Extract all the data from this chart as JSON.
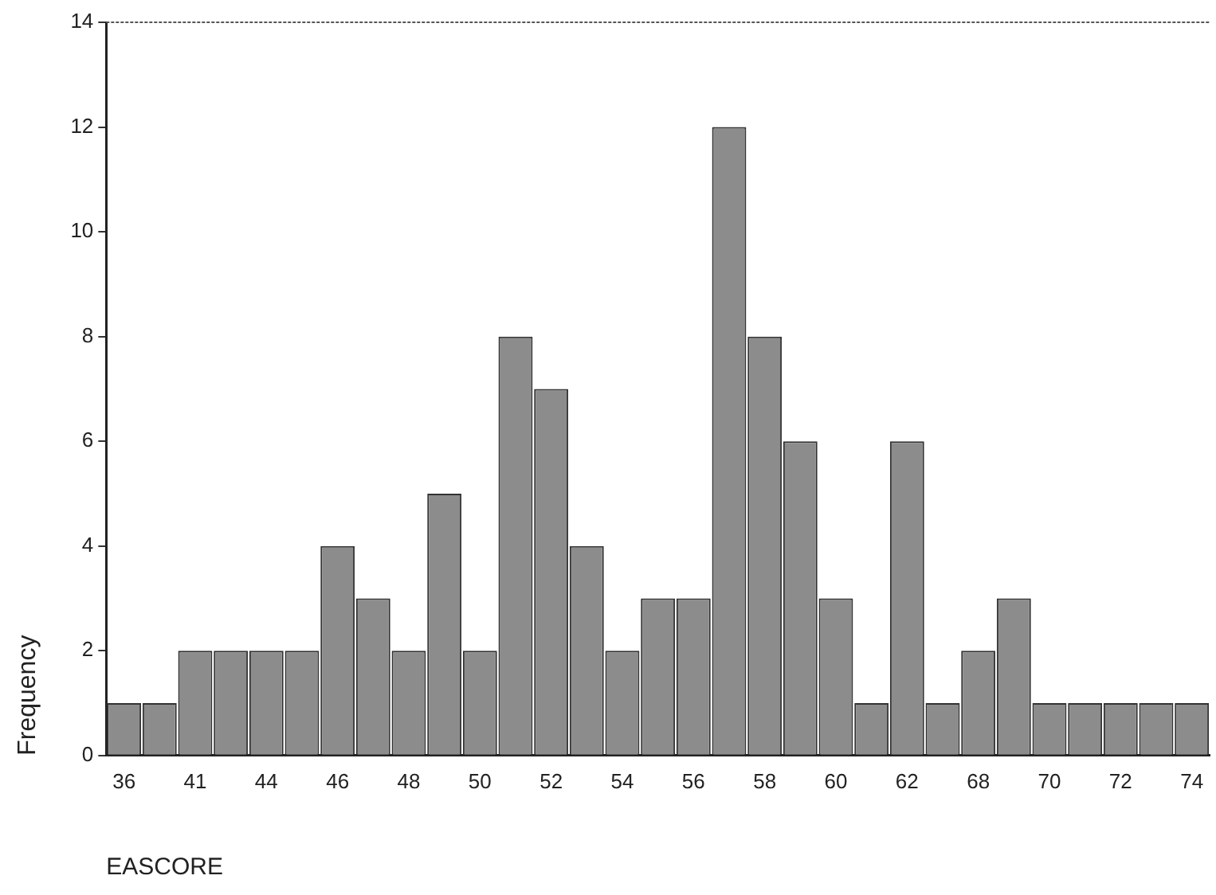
{
  "chart_data": {
    "type": "bar",
    "xlabel": "EASCORE",
    "ylabel": "Frequency",
    "categories": [
      "36",
      null,
      "41",
      null,
      "44",
      null,
      "46",
      null,
      "48",
      null,
      "50",
      null,
      "52",
      null,
      "54",
      null,
      "56",
      null,
      "58",
      null,
      "60",
      null,
      "62",
      null,
      "68",
      null,
      "70",
      null,
      "72",
      null,
      "74"
    ],
    "values": [
      1,
      1,
      2,
      2,
      2,
      2,
      4,
      3,
      2,
      5,
      2,
      8,
      7,
      4,
      2,
      3,
      3,
      12,
      8,
      6,
      3,
      1,
      6,
      1,
      2,
      3,
      1,
      1,
      1,
      1,
      1
    ],
    "color": "#8c8c8c",
    "ylim": [
      0,
      14
    ],
    "yticks": [
      0,
      2,
      4,
      6,
      8,
      10,
      12,
      14
    ],
    "grid": false,
    "legend": false
  }
}
